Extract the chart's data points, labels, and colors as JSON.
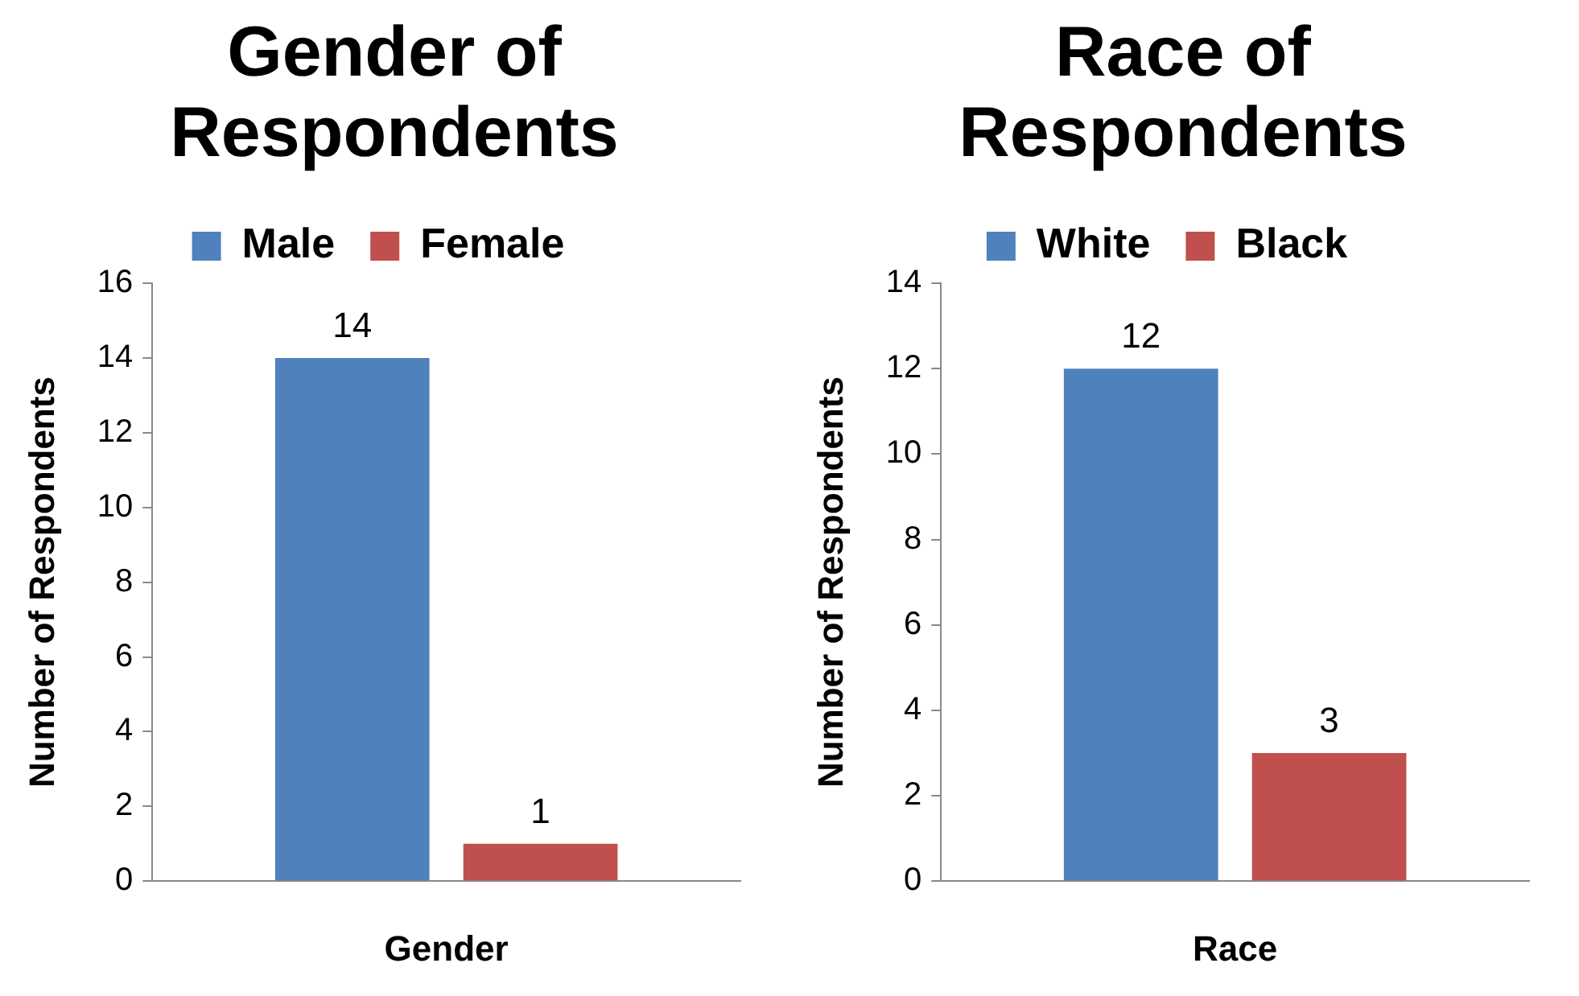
{
  "chart_data": [
    {
      "type": "bar",
      "title": "Gender of Respondents",
      "xlabel": "Gender",
      "ylabel": "Number of Respondents",
      "categories": [
        null
      ],
      "series": [
        {
          "name": "Male",
          "color": "#4f81bd",
          "values": [
            14
          ]
        },
        {
          "name": "Female",
          "color": "#c0504d",
          "values": [
            1
          ]
        }
      ],
      "ylim": [
        0,
        16
      ],
      "yticks": [
        0,
        2,
        4,
        6,
        8,
        10,
        12,
        14,
        16
      ],
      "grid": false,
      "legend": "top",
      "data_labels": true
    },
    {
      "type": "bar",
      "title": "Race of Respondents",
      "xlabel": "Race",
      "ylabel": "Number of Respondents",
      "categories": [
        null
      ],
      "series": [
        {
          "name": "White",
          "color": "#4f81bd",
          "values": [
            12
          ]
        },
        {
          "name": "Black",
          "color": "#c0504d",
          "values": [
            3
          ]
        }
      ],
      "ylim": [
        0,
        14
      ],
      "yticks": [
        0,
        2,
        4,
        6,
        8,
        10,
        12,
        14
      ],
      "grid": false,
      "legend": "top",
      "data_labels": true
    }
  ]
}
